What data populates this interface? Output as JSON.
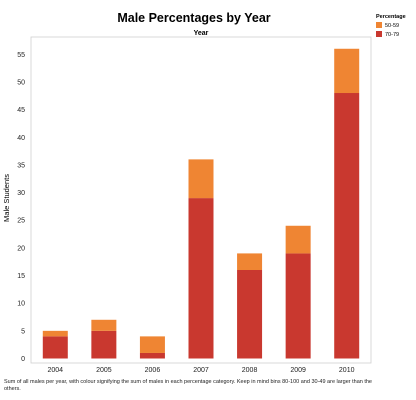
{
  "chart_data": {
    "type": "bar",
    "stacked": true,
    "title": "Male Percentages by Year",
    "column_header": "Year",
    "ylabel": "Male Students",
    "xlabel": "",
    "categories": [
      "2004",
      "2005",
      "2006",
      "2007",
      "2008",
      "2009",
      "2010"
    ],
    "series": [
      {
        "name": "70-79",
        "color": "#c9382f",
        "values": [
          4,
          5,
          1,
          29,
          16,
          19,
          48
        ]
      },
      {
        "name": "50-59",
        "color": "#ef8533",
        "values": [
          1,
          2,
          3,
          7,
          3,
          5,
          8
        ]
      }
    ],
    "ylim": [
      0,
      58
    ],
    "yticks": [
      0,
      5,
      10,
      15,
      20,
      25,
      30,
      35,
      40,
      45,
      50,
      55
    ],
    "legend": {
      "title": "Percentage",
      "placement": "top-right",
      "entries": [
        {
          "label": "50-59",
          "color": "#ef8533"
        },
        {
          "label": "70-79",
          "color": "#c9382f"
        }
      ]
    },
    "grid": false
  },
  "caption": "Sum of all males per year, with colour signifying the sum of males in each percentage category.  Keep in mind bins 80-100 and 30-49 are larger than the others."
}
